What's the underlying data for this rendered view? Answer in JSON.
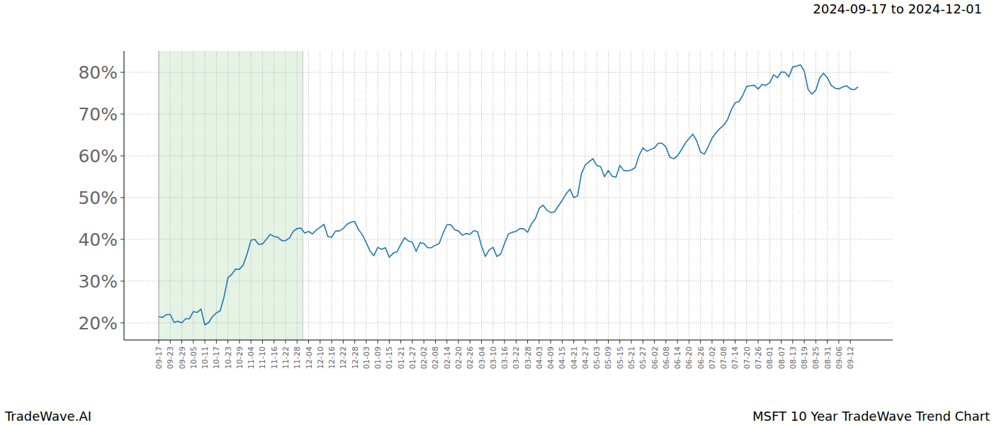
{
  "chart_data": {
    "type": "line",
    "title": "2024-09-17 to 2024-12-01",
    "footer_left": "TradeWave.AI",
    "footer_right": "MSFT 10 Year TradeWave Trend Chart",
    "color": "#1f77b4",
    "grid": true,
    "shaded_range": [
      0,
      37.5
    ],
    "ylim": [
      15.9,
      85.1
    ],
    "yticks": [
      {
        "value": 20,
        "label": "20%"
      },
      {
        "value": 30,
        "label": "30%"
      },
      {
        "value": 40,
        "label": "40%"
      },
      {
        "value": 50,
        "label": "50%"
      },
      {
        "value": 60,
        "label": "60%"
      },
      {
        "value": 70,
        "label": "70%"
      },
      {
        "value": 80,
        "label": "80%"
      }
    ],
    "categories": [
      "09-17",
      null,
      null,
      "09-23",
      null,
      null,
      "09-29",
      null,
      null,
      "10-05",
      null,
      null,
      "10-11",
      null,
      null,
      "10-17",
      null,
      null,
      "10-23",
      null,
      null,
      "10-29",
      null,
      null,
      "11-04",
      null,
      null,
      "11-10",
      null,
      null,
      "11-16",
      null,
      null,
      "11-22",
      null,
      null,
      "11-28",
      null,
      null,
      "12-04",
      null,
      null,
      "12-10",
      null,
      null,
      "12-16",
      null,
      null,
      "12-22",
      null,
      null,
      "12-28",
      null,
      null,
      "01-03",
      null,
      null,
      "01-09",
      null,
      null,
      "01-15",
      null,
      null,
      "01-21",
      null,
      null,
      "01-27",
      null,
      null,
      "02-02",
      null,
      null,
      "02-08",
      null,
      null,
      "02-14",
      null,
      null,
      "02-20",
      null,
      null,
      "02-26",
      null,
      null,
      "03-04",
      null,
      null,
      "03-10",
      null,
      null,
      "03-16",
      null,
      null,
      "03-22",
      null,
      null,
      "03-28",
      null,
      null,
      "04-03",
      null,
      null,
      "04-09",
      null,
      null,
      "04-15",
      null,
      null,
      "04-21",
      null,
      null,
      "04-27",
      null,
      null,
      "05-03",
      null,
      null,
      "05-09",
      null,
      null,
      "05-15",
      null,
      null,
      "05-21",
      null,
      null,
      "05-27",
      null,
      null,
      "06-02",
      null,
      null,
      "06-08",
      null,
      null,
      "06-14",
      null,
      null,
      "06-20",
      null,
      null,
      "06-26",
      null,
      null,
      "07-02",
      null,
      null,
      "07-08",
      null,
      null,
      "07-14",
      null,
      null,
      "07-20",
      null,
      null,
      "07-26",
      null,
      null,
      "08-01",
      null,
      null,
      "08-07",
      null,
      null,
      "08-13",
      null,
      null,
      "08-19",
      null,
      null,
      "08-25",
      null,
      null,
      "08-31",
      null,
      null,
      "09-06",
      null,
      null,
      "09-12",
      null,
      null
    ],
    "values": [
      21.5,
      21.3,
      22,
      22,
      20.1,
      20.4,
      20,
      21,
      21,
      22.7,
      22.5,
      23.3,
      19.5,
      20.1,
      21.5,
      22.4,
      22.9,
      26.2,
      30.8,
      31.6,
      32.9,
      32.8,
      33.9,
      36.5,
      39.8,
      40,
      38.8,
      38.9,
      40,
      41.2,
      40.7,
      40.5,
      39.7,
      39.7,
      40.3,
      41.9,
      42.6,
      42.7,
      41.5,
      41.9,
      41.3,
      42.2,
      42.9,
      43.6,
      40.7,
      40.5,
      42,
      42,
      42.6,
      43.6,
      44.1,
      44.3,
      42.3,
      41.1,
      39.2,
      37.2,
      36.1,
      38.1,
      37.6,
      38,
      35.7,
      36.7,
      37,
      38.8,
      40.4,
      39.6,
      39.3,
      37.1,
      39.2,
      39,
      38,
      38,
      38.6,
      39,
      41.5,
      43.5,
      43.5,
      42.3,
      42,
      41,
      41.4,
      41.2,
      42.1,
      41.8,
      38.4,
      35.9,
      37.5,
      38.1,
      35.9,
      36.5,
      39,
      41.3,
      41.7,
      41.9,
      42.6,
      42.5,
      41.7,
      43.7,
      44.9,
      47.4,
      48.2,
      47,
      46.4,
      46.6,
      48,
      49.3,
      50.9,
      52,
      50,
      50.4,
      55.7,
      57.8,
      58.6,
      59.3,
      57.7,
      57.4,
      55,
      56.5,
      55.1,
      54.9,
      57.7,
      56.5,
      56.4,
      56.6,
      57.2,
      60.1,
      61.9,
      61.1,
      61.5,
      61.9,
      63,
      63,
      62.1,
      59.7,
      59.3,
      60,
      61.4,
      63,
      64.1,
      65.2,
      63.6,
      60.9,
      60.4,
      62.2,
      64.2,
      65.5,
      66.5,
      67.3,
      68.6,
      71,
      72.7,
      73,
      74.5,
      76.6,
      76.8,
      76.9,
      76,
      77.1,
      76.9,
      77.5,
      79.4,
      78.7,
      80.1,
      80,
      78.9,
      81.3,
      81.5,
      81.8,
      80.3,
      75.9,
      74.8,
      75.7,
      78.6,
      79.8,
      78.7,
      76.9,
      76.2,
      76,
      76.5,
      76.8,
      76,
      75.8,
      76.5
    ]
  }
}
